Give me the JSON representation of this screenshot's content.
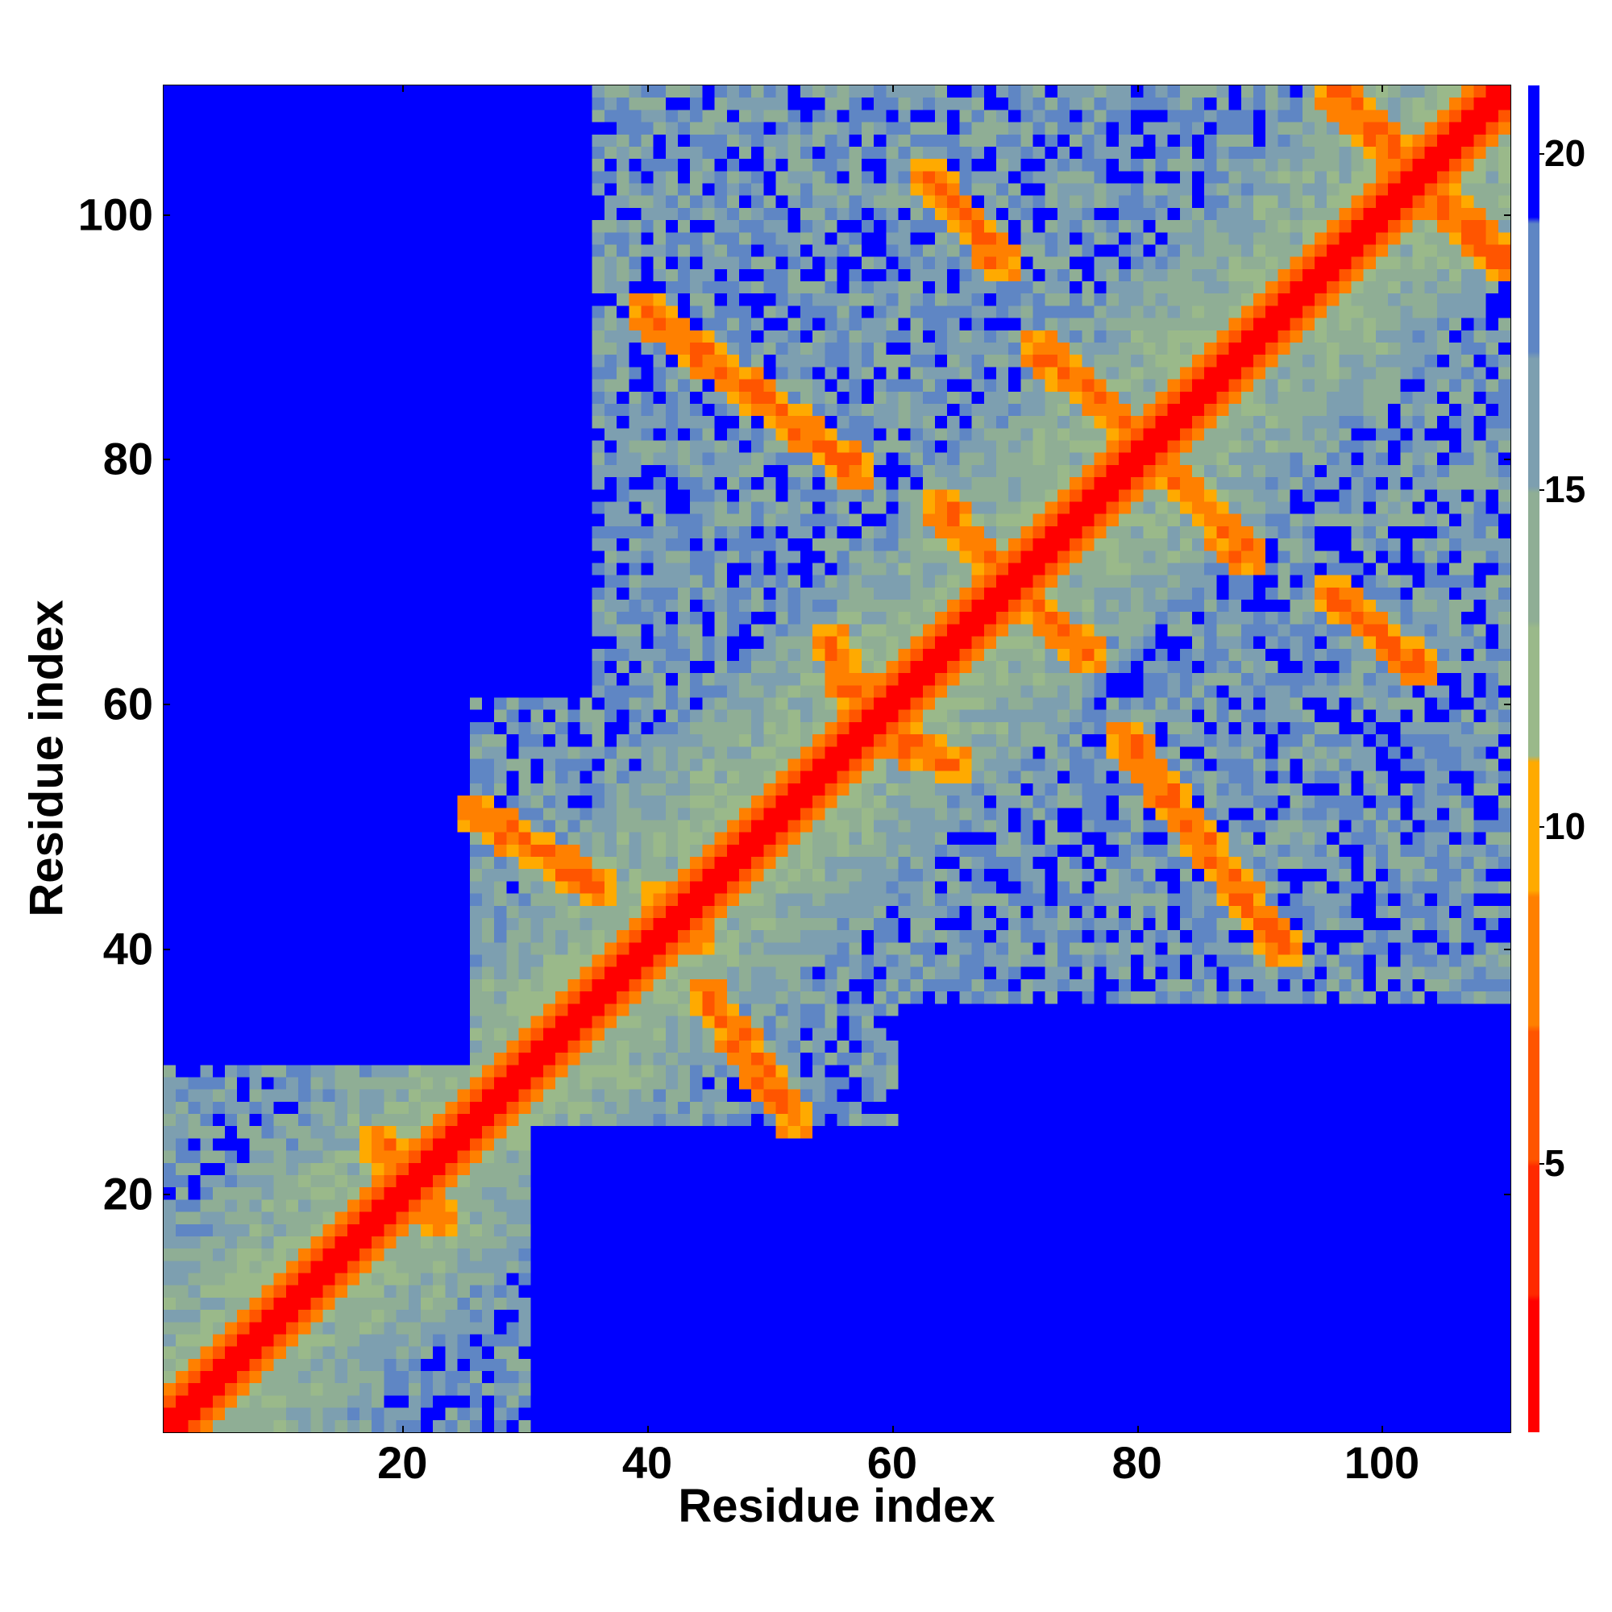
{
  "chart_data": {
    "type": "heatmap",
    "title": "",
    "xlabel": "Residue index",
    "ylabel": "Residue index",
    "xlim": [
      1,
      110
    ],
    "ylim": [
      1,
      110
    ],
    "x_ticks": [
      "20",
      "40",
      "60",
      "80",
      "100"
    ],
    "y_ticks": [
      "20",
      "40",
      "60",
      "80",
      "100"
    ],
    "colorbar": {
      "range": [
        1,
        21
      ],
      "ticks": [
        "5",
        "10",
        "15",
        "20"
      ],
      "colors": [
        "#ff0000",
        "#ff2a00",
        "#ff5500",
        "#ff8000",
        "#ffaa00",
        "#9ab98a",
        "#8fae95",
        "#7d9fb0",
        "#5f86c4",
        "#0000ff"
      ]
    },
    "description_values": {
      "diagonal_distance": 1,
      "near_diagonal_distance": 4,
      "far_distance": 21
    },
    "contact_bands": [
      {
        "from": [
          18,
          24
        ],
        "to": [
          23,
          18
        ]
      },
      {
        "from": [
          26,
          51
        ],
        "to": [
          36,
          45
        ]
      },
      {
        "from": [
          45,
          36
        ],
        "to": [
          52,
          26
        ]
      },
      {
        "from": [
          41,
          44
        ],
        "to": [
          44,
          41
        ]
      },
      {
        "from": [
          55,
          65
        ],
        "to": [
          58,
          58
        ]
      },
      {
        "from": [
          58,
          58
        ],
        "to": [
          65,
          55
        ]
      },
      {
        "from": [
          40,
          92
        ],
        "to": [
          57,
          79
        ]
      },
      {
        "from": [
          79,
          57
        ],
        "to": [
          92,
          40
        ]
      },
      {
        "from": [
          63,
          103
        ],
        "to": [
          69,
          96
        ]
      },
      {
        "from": [
          96,
          69
        ],
        "to": [
          103,
          63
        ]
      },
      {
        "from": [
          64,
          76
        ],
        "to": [
          69,
          70
        ]
      },
      {
        "from": [
          70,
          69
        ],
        "to": [
          76,
          64
        ]
      },
      {
        "from": [
          72,
          89
        ],
        "to": [
          82,
          80
        ]
      },
      {
        "from": [
          80,
          82
        ],
        "to": [
          89,
          72
        ]
      },
      {
        "from": [
          96,
          110
        ],
        "to": [
          103,
          103
        ]
      },
      {
        "from": [
          103,
          103
        ],
        "to": [
          110,
          96
        ]
      }
    ]
  }
}
